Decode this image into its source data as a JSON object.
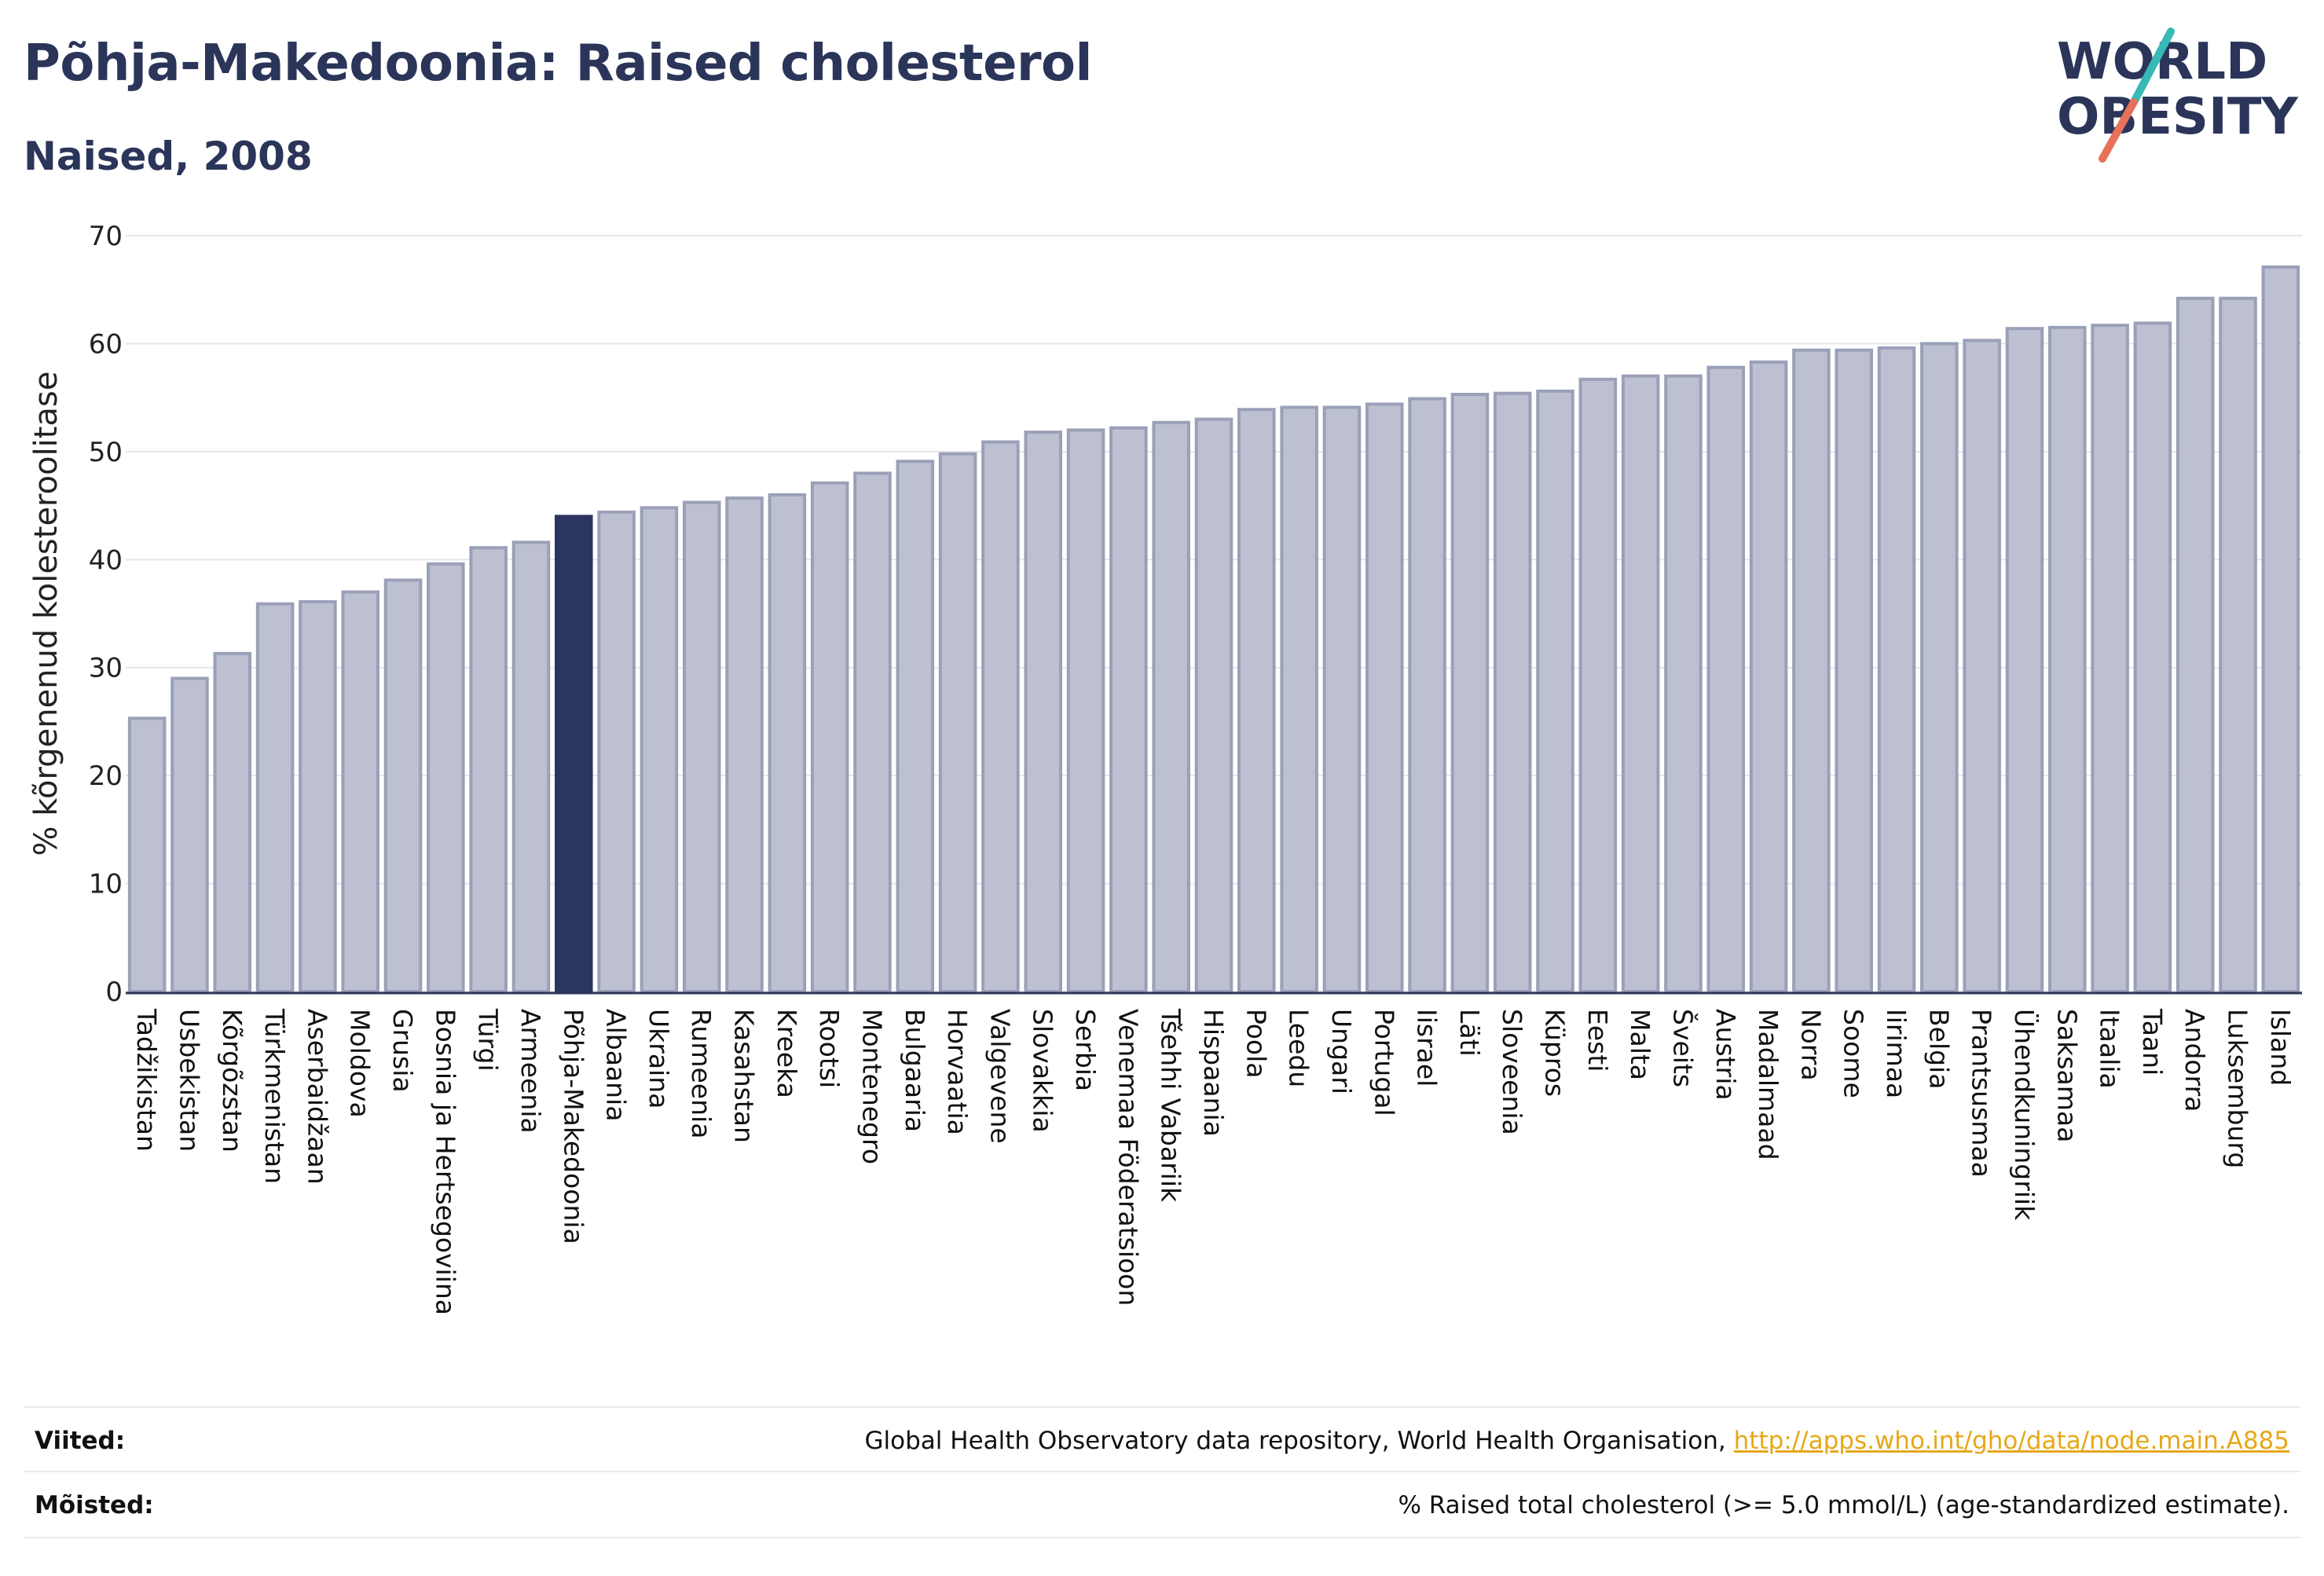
{
  "header": {
    "title": "Põhja-Makedoonia: Raised cholesterol",
    "subtitle": "Naised, 2008"
  },
  "logo": {
    "line1": "WORLD",
    "line2": "OBESITY"
  },
  "colors": {
    "highlight": "#2b3560",
    "bar_fill": "#bcc0d0",
    "bar_stroke": "#9aa0b8",
    "text": "#2b3559",
    "logo_slash_teal": "#37b9b5",
    "logo_slash_coral": "#e8715a",
    "link": "#e6a817"
  },
  "chart_data": {
    "type": "bar",
    "ylabel": "% kõrgenenud kolesteroolitase",
    "xlabel": "",
    "ylim": [
      0,
      70
    ],
    "yticks": [
      0,
      10,
      20,
      30,
      40,
      50,
      60,
      70
    ],
    "grid": true,
    "highlight": "Põhja-Makedoonia",
    "categories": [
      "Tadžikistan",
      "Usbekistan",
      "Kõrgõzstan",
      "Türkmenistan",
      "Aserbaidžaan",
      "Moldova",
      "Grusia",
      "Bosnia ja Hertsegoviina",
      "Türgi",
      "Armeenia",
      "Põhja-Makedoonia",
      "Albaania",
      "Ukraina",
      "Rumeenia",
      "Kasahstan",
      "Kreeka",
      "Rootsi",
      "Montenegro",
      "Bulgaaria",
      "Horvaatia",
      "Valgevene",
      "Slovakkia",
      "Serbia",
      "Venemaa Föderatsioon",
      "Tšehhi Vabariik",
      "Hispaania",
      "Poola",
      "Leedu",
      "Ungari",
      "Portugal",
      "Iisrael",
      "Läti",
      "Sloveenia",
      "Küpros",
      "Eesti",
      "Malta",
      "Šveits",
      "Austria",
      "Madalmaad",
      "Norra",
      "Soome",
      "Iirimaa",
      "Belgia",
      "Prantsusmaa",
      "Ühendkuningriik",
      "Saksamaa",
      "Itaalia",
      "Taani",
      "Andorra",
      "Luksemburg",
      "Island"
    ],
    "values": [
      25.3,
      29.0,
      31.3,
      35.9,
      36.1,
      37.0,
      38.1,
      39.6,
      41.1,
      41.6,
      44.0,
      44.4,
      44.8,
      45.3,
      45.7,
      46.0,
      47.1,
      48.0,
      49.1,
      49.8,
      50.9,
      51.8,
      52.0,
      52.2,
      52.7,
      53.0,
      53.9,
      54.1,
      54.1,
      54.4,
      54.9,
      55.3,
      55.4,
      55.6,
      56.7,
      57.0,
      57.0,
      57.8,
      58.3,
      59.4,
      59.4,
      59.6,
      60.0,
      60.3,
      61.4,
      61.5,
      61.7,
      61.9,
      64.2,
      64.2,
      67.1
    ]
  },
  "footer": {
    "sources_label": "Viited:",
    "sources_text": "Global Health Observatory data repository, World Health Organisation, ",
    "sources_link": "http://apps.who.int/gho/data/node.main.A885",
    "definitions_label": "Mõisted:",
    "definitions_text": "% Raised total cholesterol (>= 5.0 mmol/L) (age-standardized estimate)."
  }
}
